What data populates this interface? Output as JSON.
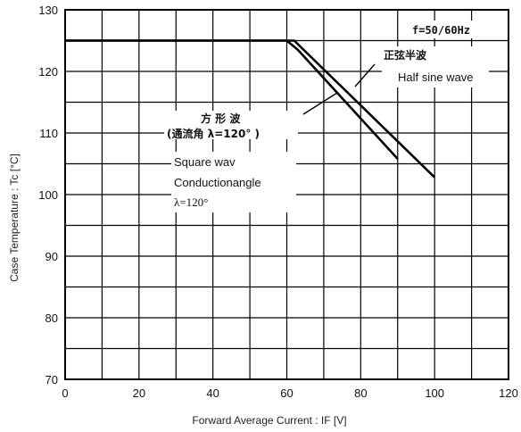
{
  "chart_data": {
    "type": "line",
    "xlabel": "Forward Average Current : IF [V]",
    "ylabel": "Case Temperature : Tc [°C]",
    "xlim": [
      0,
      120
    ],
    "ylim": [
      70,
      130
    ],
    "x_ticks": [
      0,
      20,
      40,
      60,
      80,
      100,
      120
    ],
    "y_ticks": [
      70,
      80,
      90,
      100,
      110,
      120,
      130
    ],
    "grid": true,
    "series": [
      {
        "x": [
          0,
          60,
          63,
          90
        ],
        "y": [
          125,
          125,
          123.5,
          105.8
        ]
      },
      {
        "x": [
          0,
          62,
          100
        ],
        "y": [
          125,
          125,
          102.8
        ]
      }
    ],
    "annotations": {
      "frequency": "f=50/60Hz",
      "half_sine_jp": "正弦半波",
      "half_sine_en": "Half sine wave",
      "square_jp_line1": "方  形  波",
      "square_jp_line2": "(通流角  λ=120° )",
      "square_en_line1": "Square wav",
      "square_en_line2": "Conductionangle",
      "square_en_line3": "λ=120°"
    }
  }
}
